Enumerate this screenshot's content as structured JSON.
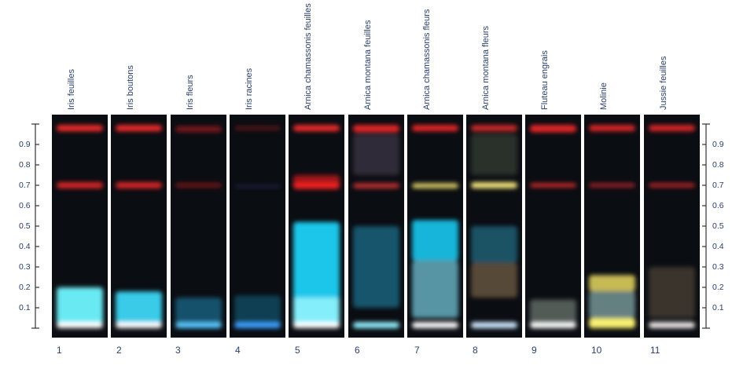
{
  "lanes": [
    {
      "number": "1",
      "label": "Iris feuilles"
    },
    {
      "number": "2",
      "label": "Iris boutons"
    },
    {
      "number": "3",
      "label": "Iris fleurs"
    },
    {
      "number": "4",
      "label": "Iris racines"
    },
    {
      "number": "5",
      "label": "Arnica chamassonis feuilles"
    },
    {
      "number": "6",
      "label": "Arnica montana feuilles"
    },
    {
      "number": "7",
      "label": "Arnica chamassonis fleurs"
    },
    {
      "number": "8",
      "label": "Arnica montana fleurs"
    },
    {
      "number": "9",
      "label": "Fluteau engrais"
    },
    {
      "number": "10",
      "label": "Molinie"
    },
    {
      "number": "11",
      "label": "Jussie feuilles"
    }
  ],
  "scale": {
    "ticks": [
      0.1,
      0.2,
      0.3,
      0.4,
      0.5,
      0.6,
      0.7,
      0.8,
      0.9
    ]
  }
}
